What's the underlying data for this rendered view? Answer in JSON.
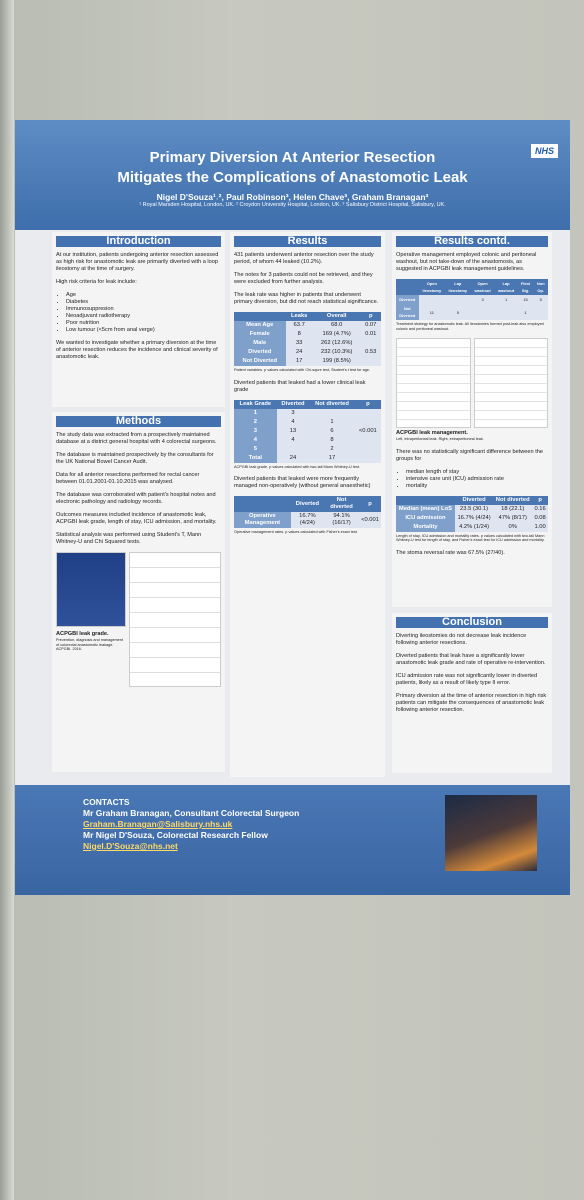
{
  "header": {
    "logo": "NHS",
    "title_lines": [
      "Primary Diversion At Anterior Resection",
      "Mitigates the Complications of Anastomotic Leak"
    ],
    "authors": "Nigel D'Souza¹˒², Paul Robinson³, Helen Chave³, Graham Branagan³",
    "affiliations": "¹ Royal Marsden Hospital, London, UK. ² Croydon University Hospital, London, UK. ³ Salisbury District Hospital, Salisbury, UK."
  },
  "introduction": {
    "heading": "Introduction",
    "p1": "At our institution, patients undergoing anterior resection assessed as high risk for anastomotic leak are primarily diverted with a loop ileostomy at the time of surgery.",
    "p2": "High risk criteria for leak include:",
    "list": [
      "Age",
      "Diabetes",
      "Immunosuppresion",
      "Neoadjuvant radiotherapy",
      "Poor nutrition",
      "Low tumour (<5cm from anal verge)"
    ],
    "p3": "We wanted to investigate whether a primary diversion at the time of anterior resection reduces the incidence and clinical severity of anastomotic leak."
  },
  "methods": {
    "heading": "Methods",
    "paragraphs": [
      "The study data was extracted from a prospectively maintained database at a district general hospital with 4 colorectal surgeons.",
      "The database is maintained prospectively by the consultants for the UK National Bowel Cancer Audit.",
      "Data for all anterior resections performed for rectal cancer between 01.01.2001-01.10.2015 was analysed.",
      "The database was corroborated with patient's hospital notes and electronic pathology and radiology records.",
      "Outcomes measures included incidence of anastomotic leak, ACPGBI leak grade, length of stay, ICU admission, and mortality.",
      "Statistical analysis was performed using Student's T, Mann Whitney-U and Chi Squared tests."
    ],
    "figure_title": "ACPGBI leak grade.",
    "figure_caption": "Prevention, diagnosis and management of colorectal anastomotic leakage. ACPGBI. 2016."
  },
  "results": {
    "heading": "Results",
    "paragraphs": [
      "431 patients underwent anterior resection over the study period, of whom 44 leaked (10.2%).",
      "The notes for 3 patients could not be retrieved, and they were excluded from further analysis.",
      "The leak rate was higher in patients that underwent primary diversion, but did not reach statistical significance."
    ],
    "table1": {
      "header": [
        "",
        "Leaks",
        "Overall",
        "p"
      ],
      "rows": [
        [
          "Mean Age",
          "63.7",
          "68.0",
          "0.07"
        ],
        [
          "Female",
          "8",
          "169 (4.7%)",
          "0.01"
        ],
        [
          "Male",
          "33",
          "262 (12.6%)",
          null
        ],
        [
          "Diverted",
          "24",
          "232 (10.3%)",
          "0.53"
        ],
        [
          "Not Diverted",
          "17",
          "199 (8.5%)",
          null
        ]
      ]
    },
    "note1": "Patient variables. p values calculated with Chi-squre test, Student's t test for age.",
    "p4": "Diverted patients that leaked had a lower clinical leak grade",
    "table2": {
      "header": [
        "Leak Grade",
        "Diverted",
        "Not diverted",
        "p"
      ],
      "rows": [
        [
          "1",
          "3",
          null,
          null
        ],
        [
          "2",
          "4",
          "1",
          null
        ],
        [
          "3",
          "13",
          "6",
          "<0.001"
        ],
        [
          "4",
          "4",
          "8",
          null
        ],
        [
          "5",
          null,
          "2",
          null
        ],
        [
          "Total",
          "24",
          "17",
          null
        ]
      ]
    },
    "note2": "ACPGBI leak grade. p values calculated with two-tail Mann Whitney-U test.",
    "p5": "Diverted patients that leaked were more frequently managed non-operatively (without general anaesthetic)",
    "table3": {
      "header": [
        "",
        "Diverted",
        "Not diverted",
        "p"
      ],
      "rows": [
        [
          "Operative Management",
          "16.7% (4/24)",
          "94.1% (16/17)",
          "<0.001"
        ]
      ]
    },
    "note3": "Operative management rates. p values calculated with Fisher's exact test"
  },
  "results_contd": {
    "heading": "Results contd.",
    "p1": "Operative management employed colonic and peritoneal washout, but not take-down of the anastomosis, as suggested in ACPGBI leak management guidelines.",
    "table4": {
      "header": [
        "",
        "Open ileostomy",
        "Lap ileostomy",
        "Open washout",
        "Lap washout",
        "Flexi Sig.",
        "Non Op."
      ],
      "rows": [
        [
          "Diverted",
          null,
          null,
          "3",
          "1",
          "15",
          "5"
        ],
        [
          "Not Diverted",
          "11",
          "5",
          null,
          null,
          "1",
          null
        ]
      ]
    },
    "note4": "Treatment strategy for anastomotic leak. All ileostomies formed post-leak also employed colonic and peritoneal washout.",
    "figure_title": "ACPGBI leak management.",
    "figure_caption": "Left, intraperitoneal leak. Right, extraperitoneal leak.",
    "p2": "There was no statistically significant difference between the groups for",
    "list": [
      "median length of stay",
      "intensive care unit (ICU) admission rate",
      "mortality"
    ],
    "table5": {
      "header": [
        "",
        "Diverted",
        "Not diverted",
        "p"
      ],
      "rows": [
        [
          "Median (mean) LoS",
          "23.5 (30.1)",
          "18 (22.1)",
          "0.16"
        ],
        [
          "ICU admission",
          "16.7% (4/24)",
          "47% (8/17)",
          "0.08"
        ],
        [
          "Mortality",
          "4.2% (1/24)",
          "0%",
          "1.00"
        ]
      ]
    },
    "note5": "Length of stay, ICU admission and mortality rates. p values calculated with two-tail Mann Whitney-U test for length of stay, and Fisher's exact test for ICU admission and mortality.",
    "p3": "The stoma reversal rate was 67.5% (27/40)."
  },
  "conclusion": {
    "heading": "Conclusion",
    "paragraphs": [
      "Diverting ileostomies do not decrease leak incidence following anterior resections.",
      "Diverted patients that leak have a significantly lower anastomotic leak grade and rate of operative re-intervention.",
      "ICU admission rate was not significantly lower in diverted patients, likely as a result of likely type II error.",
      "Primary diversion at the time of anterior resection in high risk patients can mitigate the consequences of anastomotic leak following anterior resection."
    ]
  },
  "contacts": {
    "heading": "CONTACTS",
    "lines": [
      "Mr Graham Branagan, Consultant Colorectal Surgeon",
      "Graham.Branagan@Salisbury.nhs.uk",
      "Mr Nigel D'Souza, Colorectal Research Fellow",
      "Nigel.D'Souza@nhs.net"
    ]
  }
}
